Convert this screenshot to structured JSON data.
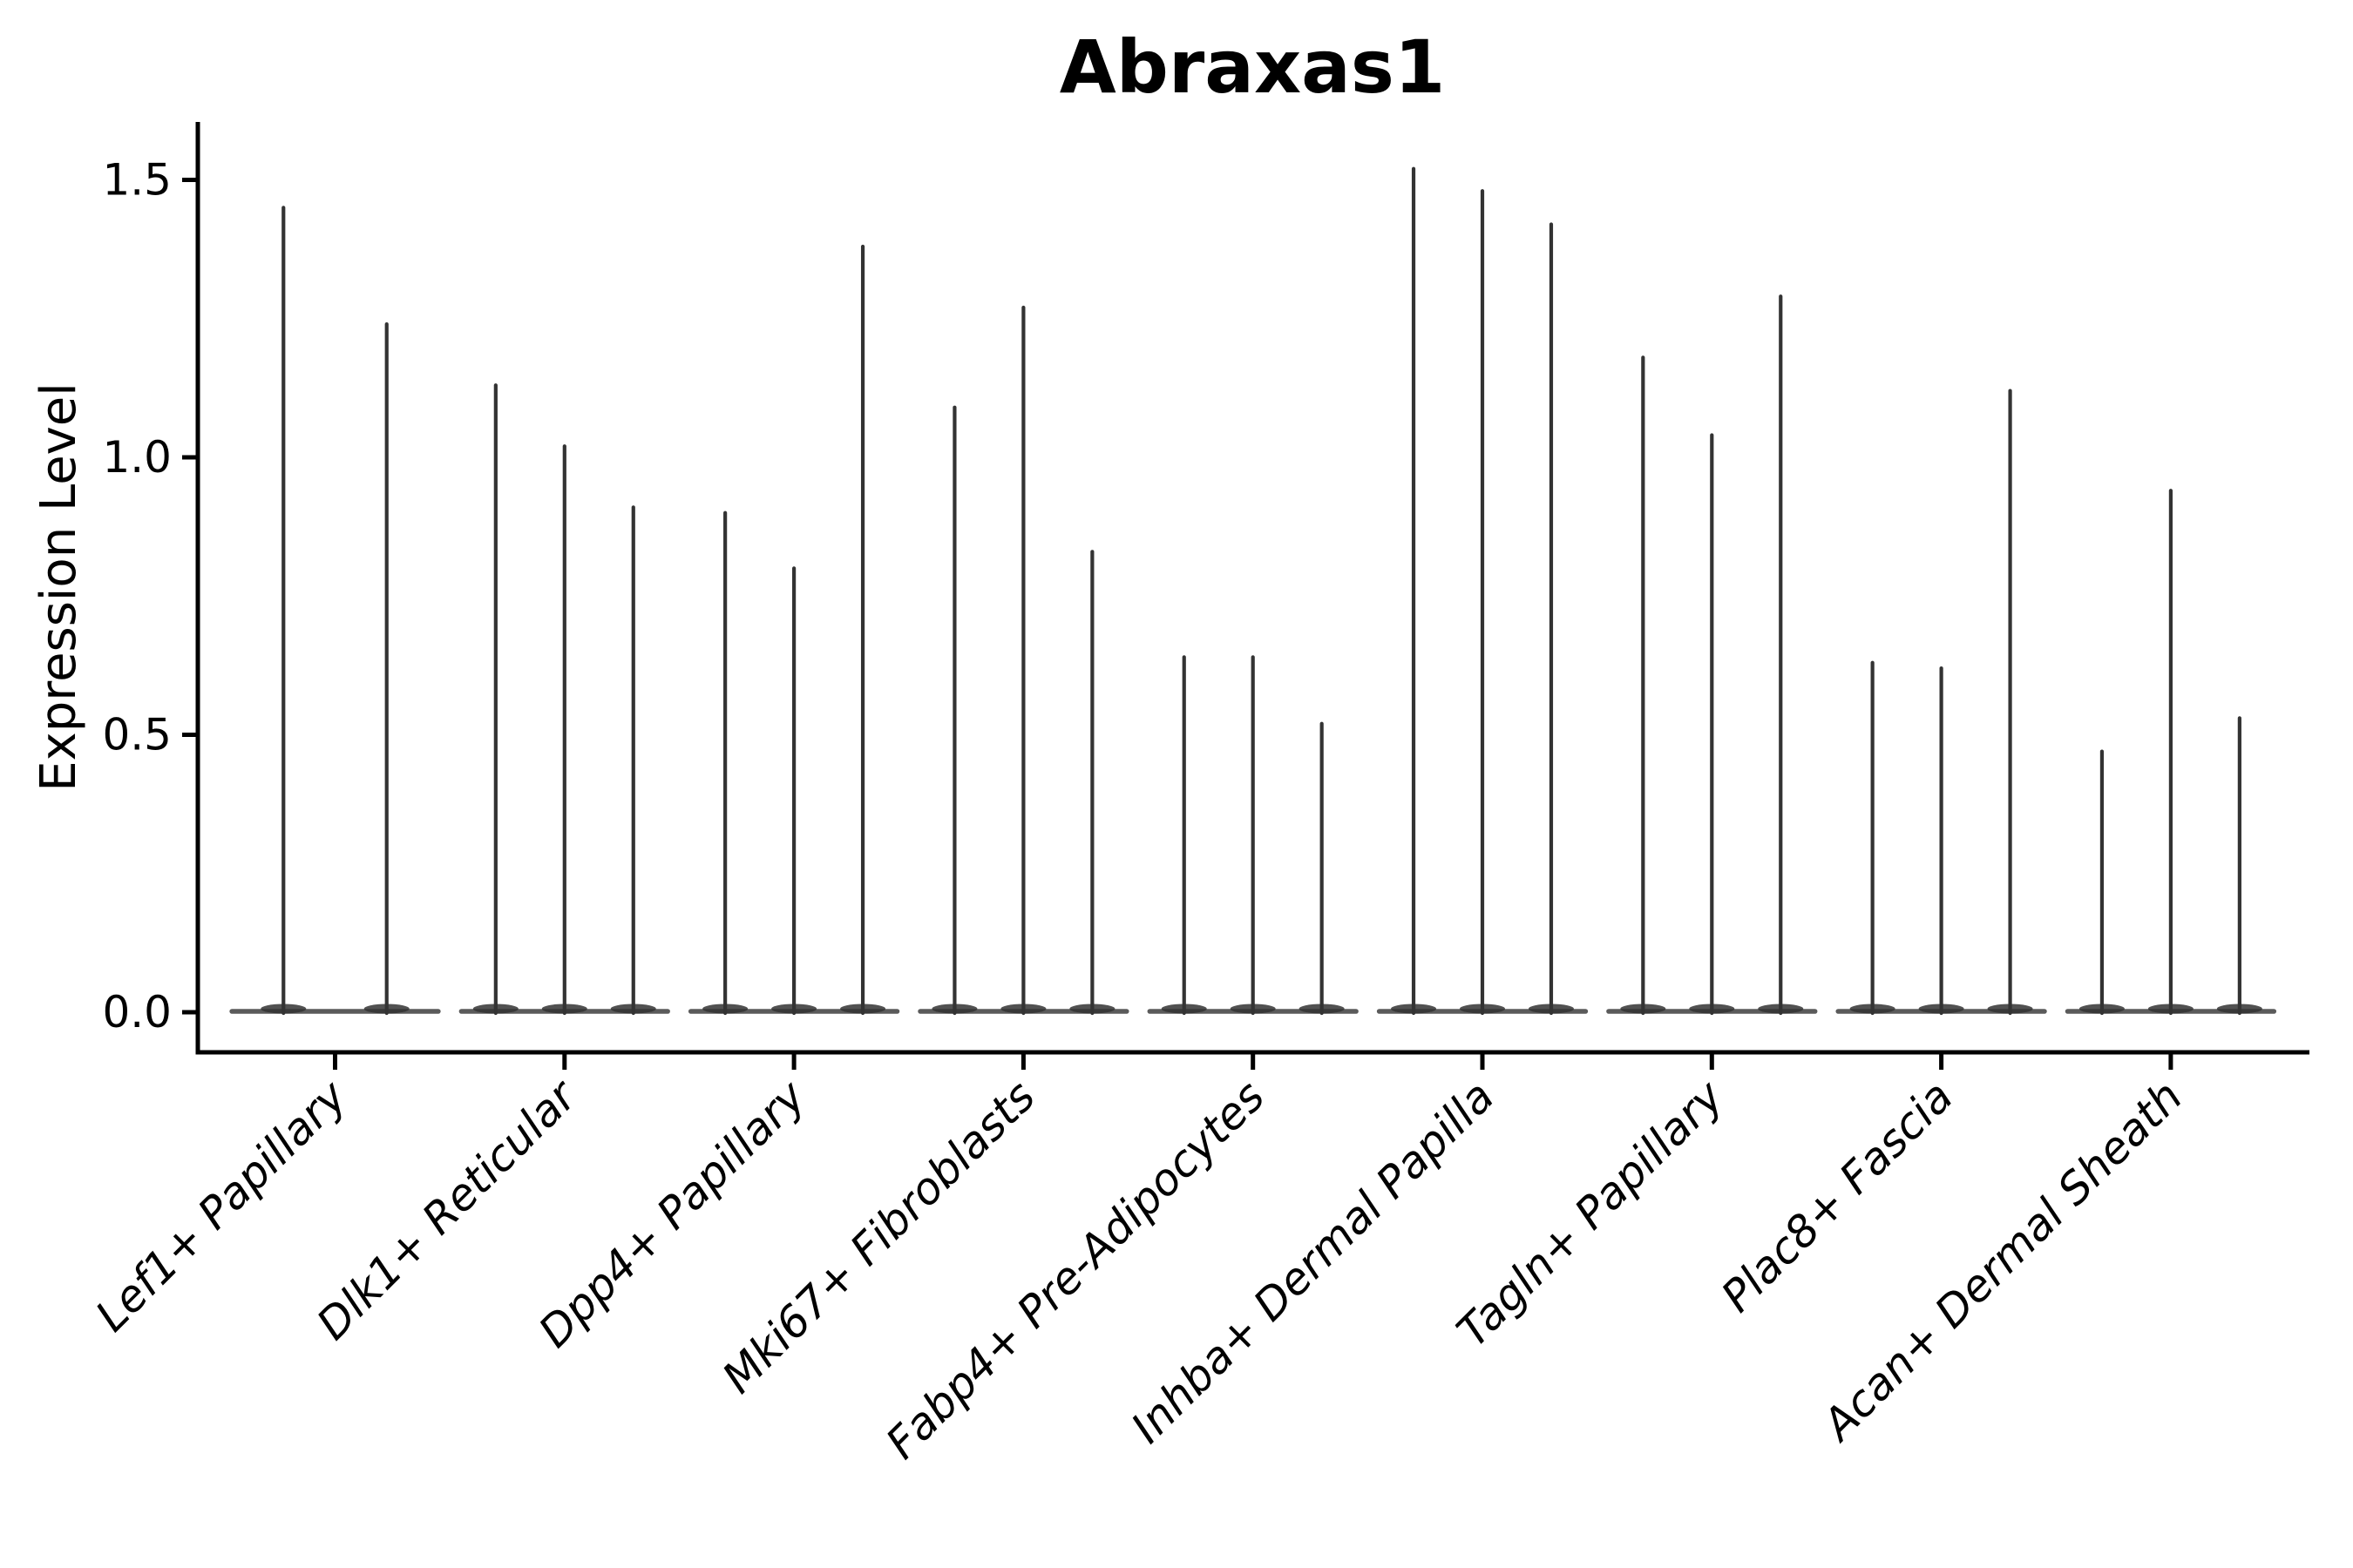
{
  "figure": {
    "title": "Abraxas1",
    "y_axis_label": "Expression Level"
  },
  "chart_data": {
    "type": "violin",
    "title": "Abraxas1",
    "xlabel": "",
    "ylabel": "Expression Level",
    "ytick_labels": [
      "0.0",
      "0.5",
      "1.0",
      "1.5"
    ],
    "ylim": [
      -0.07,
      1.6
    ],
    "grid": false,
    "legend_position": "none",
    "categories": [
      "Lef1+ Papillary",
      "Dlk1+ Reticular",
      "Dpp4+ Papillary",
      "Mki67+ Fibroblasts",
      "Fabp4+ Pre-Adipocytes",
      "Inhba+ Dermal Papilla",
      "Tagln+ Papillary",
      "Plac8+ Fascia",
      "Acan+ Dermal Sheath"
    ],
    "series": [
      {
        "name": "Lef1+ Papillary",
        "violin_max_values": [
          1.45,
          1.24
        ]
      },
      {
        "name": "Dlk1+ Reticular",
        "violin_max_values": [
          1.13,
          1.02,
          0.91
        ]
      },
      {
        "name": "Dpp4+ Papillary",
        "violin_max_values": [
          0.9,
          0.8,
          1.38
        ]
      },
      {
        "name": "Mki67+ Fibroblasts",
        "violin_max_values": [
          1.09,
          1.27,
          0.83
        ]
      },
      {
        "name": "Fabp4+ Pre-Adipocytes",
        "violin_max_values": [
          0.64,
          0.64,
          0.52
        ]
      },
      {
        "name": "Inhba+ Dermal Papilla",
        "violin_max_values": [
          1.52,
          1.48,
          1.42
        ]
      },
      {
        "name": "Tagln+ Papillary",
        "violin_max_values": [
          1.18,
          1.04,
          1.29
        ]
      },
      {
        "name": "Plac8+ Fascia",
        "violin_max_values": [
          0.63,
          0.62,
          1.12
        ]
      },
      {
        "name": "Acan+ Dermal Sheath",
        "violin_max_values": [
          0.47,
          0.94,
          0.53
        ]
      }
    ],
    "description": "Each category shows very thin violins: a wide flat base at expression 0 with a narrow spike up to the max value.",
    "colors": {
      "violin_stroke": "#333333",
      "violin_base": "#4a4a4a",
      "spine": "#000000",
      "text": "#000000",
      "background": "#ffffff"
    }
  }
}
